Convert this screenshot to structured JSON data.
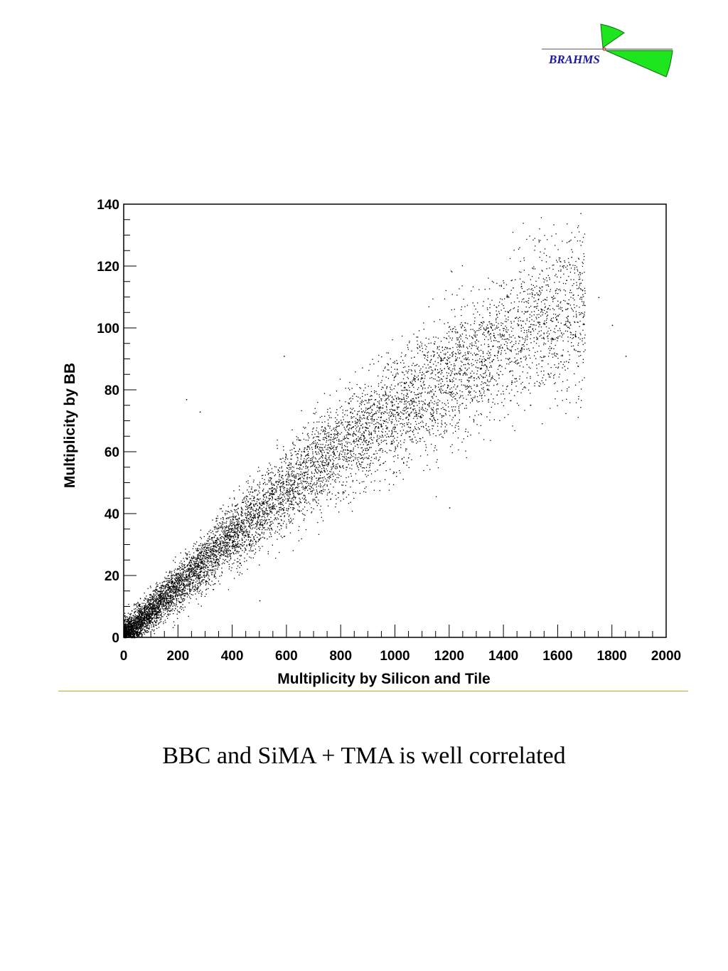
{
  "logo": {
    "text": "BRAHMS",
    "text_color": "#1a1aa0",
    "wedge_color": "#1ee61e"
  },
  "caption": "BBC and SiMA + TMA is well correlated",
  "colors": {
    "separator": "#b4b42a",
    "points": "#000000"
  },
  "chart_data": {
    "type": "scatter",
    "title": "",
    "xlabel": "Multiplicity by Silicon and Tile",
    "ylabel": "Multiplicity by BB",
    "xlim": [
      0,
      2000
    ],
    "ylim": [
      0,
      140
    ],
    "xticks": [
      0,
      200,
      400,
      600,
      800,
      1000,
      1200,
      1400,
      1600,
      1800,
      2000
    ],
    "yticks": [
      0,
      20,
      40,
      60,
      80,
      100,
      120,
      140
    ],
    "grid": false,
    "legend": "none",
    "density_trend": [
      {
        "x": 0,
        "y": 0
      },
      {
        "x": 200,
        "y": 17
      },
      {
        "x": 400,
        "y": 33
      },
      {
        "x": 600,
        "y": 48
      },
      {
        "x": 800,
        "y": 62
      },
      {
        "x": 1000,
        "y": 73
      },
      {
        "x": 1200,
        "y": 84
      },
      {
        "x": 1400,
        "y": 96
      },
      {
        "x": 1600,
        "y": 104
      }
    ],
    "notable_points": [
      {
        "x": 1850,
        "y": 91
      },
      {
        "x": 1800,
        "y": 101
      },
      {
        "x": 1530,
        "y": 128
      },
      {
        "x": 1650,
        "y": 123
      },
      {
        "x": 1750,
        "y": 110
      },
      {
        "x": 590,
        "y": 91
      },
      {
        "x": 280,
        "y": 73
      },
      {
        "x": 230,
        "y": 77
      },
      {
        "x": 1200,
        "y": 42
      },
      {
        "x": 500,
        "y": 12
      }
    ]
  }
}
